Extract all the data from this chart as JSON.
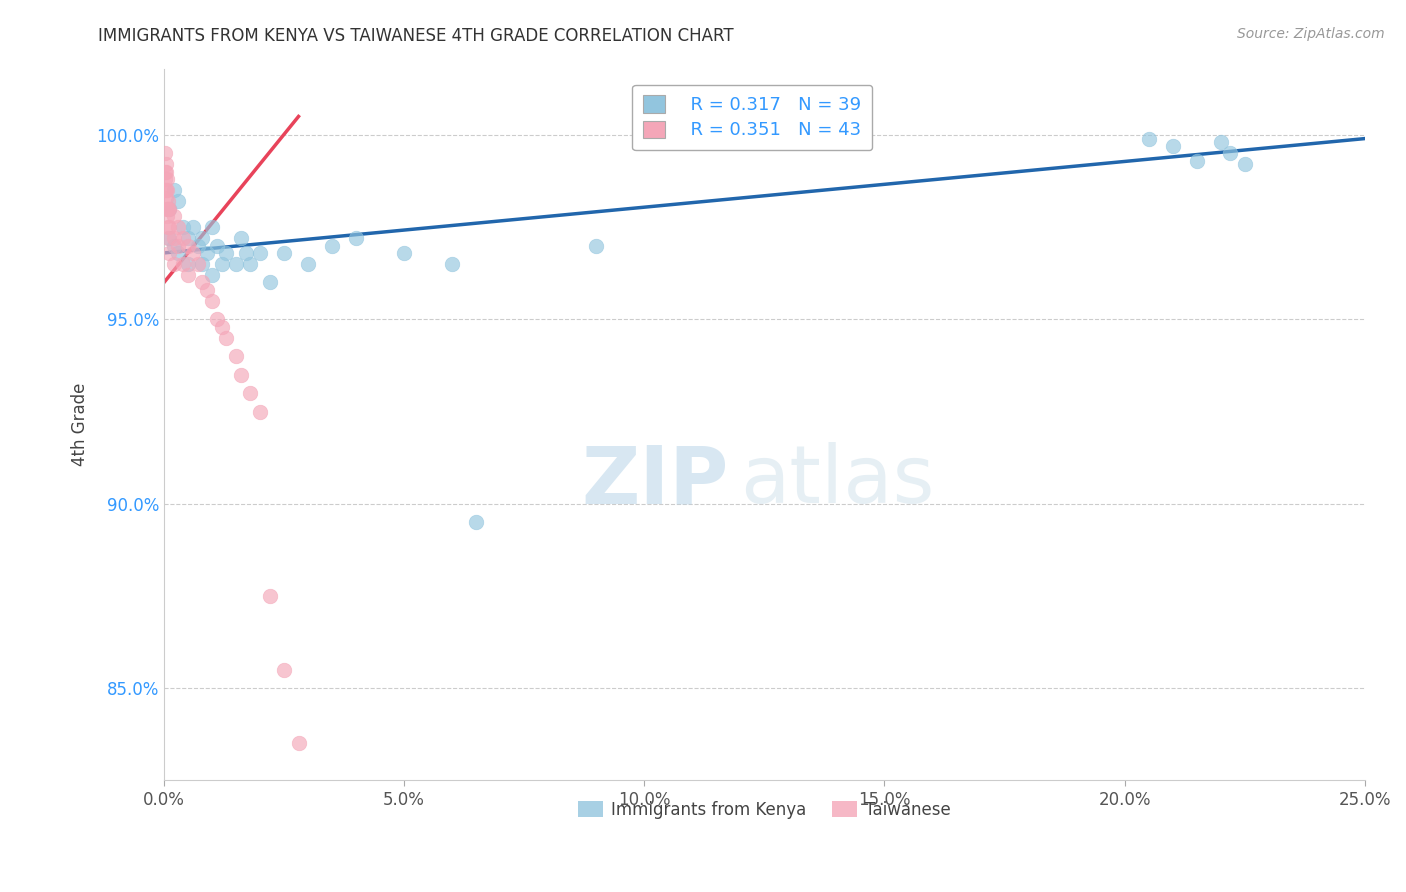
{
  "title": "IMMIGRANTS FROM KENYA VS TAIWANESE 4TH GRADE CORRELATION CHART",
  "source": "Source: ZipAtlas.com",
  "ylabel": "4th Grade",
  "xlim": [
    0.0,
    0.25
  ],
  "ylim": [
    0.825,
    1.018
  ],
  "xticks": [
    0.0,
    0.05,
    0.1,
    0.15,
    0.2,
    0.25
  ],
  "xtick_labels": [
    "0.0%",
    "5.0%",
    "10.0%",
    "15.0%",
    "20.0%",
    "25.0%"
  ],
  "yticks": [
    0.85,
    0.9,
    0.95,
    1.0
  ],
  "ytick_labels": [
    "85.0%",
    "90.0%",
    "95.0%",
    "100.0%"
  ],
  "blue_color": "#92c5de",
  "pink_color": "#f4a6b8",
  "blue_line_color": "#2166ac",
  "pink_line_color": "#e8435a",
  "legend_R1": "R = 0.317",
  "legend_N1": "N = 39",
  "legend_R2": "R = 0.351",
  "legend_N2": "N = 43",
  "legend_label1": "Immigrants from Kenya",
  "legend_label2": "Taiwanese",
  "watermark_zip": "ZIP",
  "watermark_atlas": "atlas",
  "blue_scatter_x": [
    0.001,
    0.001,
    0.002,
    0.002,
    0.003,
    0.003,
    0.004,
    0.005,
    0.005,
    0.006,
    0.007,
    0.008,
    0.008,
    0.009,
    0.01,
    0.01,
    0.011,
    0.012,
    0.013,
    0.015,
    0.016,
    0.017,
    0.018,
    0.02,
    0.022,
    0.025,
    0.03,
    0.035,
    0.04,
    0.05,
    0.06,
    0.065,
    0.09,
    0.205,
    0.21,
    0.215,
    0.22,
    0.222,
    0.225
  ],
  "blue_scatter_y": [
    0.98,
    0.972,
    0.985,
    0.97,
    0.982,
    0.968,
    0.975,
    0.972,
    0.965,
    0.975,
    0.97,
    0.972,
    0.965,
    0.968,
    0.975,
    0.962,
    0.97,
    0.965,
    0.968,
    0.965,
    0.972,
    0.968,
    0.965,
    0.968,
    0.96,
    0.968,
    0.965,
    0.97,
    0.972,
    0.968,
    0.965,
    0.895,
    0.97,
    0.999,
    0.997,
    0.993,
    0.998,
    0.995,
    0.992
  ],
  "pink_scatter_x": [
    0.0002,
    0.0002,
    0.0003,
    0.0003,
    0.0004,
    0.0004,
    0.0005,
    0.0005,
    0.0006,
    0.0006,
    0.0007,
    0.0007,
    0.0008,
    0.0008,
    0.0009,
    0.0009,
    0.001,
    0.001,
    0.001,
    0.002,
    0.002,
    0.002,
    0.003,
    0.003,
    0.004,
    0.004,
    0.005,
    0.005,
    0.006,
    0.007,
    0.008,
    0.009,
    0.01,
    0.011,
    0.012,
    0.013,
    0.015,
    0.016,
    0.018,
    0.02,
    0.022,
    0.025,
    0.028
  ],
  "pink_scatter_y": [
    0.99,
    0.985,
    0.995,
    0.988,
    0.992,
    0.983,
    0.99,
    0.985,
    0.988,
    0.98,
    0.985,
    0.978,
    0.982,
    0.975,
    0.98,
    0.972,
    0.98,
    0.975,
    0.968,
    0.978,
    0.972,
    0.965,
    0.975,
    0.97,
    0.972,
    0.965,
    0.97,
    0.962,
    0.968,
    0.965,
    0.96,
    0.958,
    0.955,
    0.95,
    0.948,
    0.945,
    0.94,
    0.935,
    0.93,
    0.925,
    0.875,
    0.855,
    0.835
  ],
  "blue_line_x": [
    0.0,
    0.25
  ],
  "blue_line_y": [
    0.968,
    0.999
  ],
  "pink_line_x": [
    0.0,
    0.028
  ],
  "pink_line_y": [
    0.96,
    1.005
  ]
}
